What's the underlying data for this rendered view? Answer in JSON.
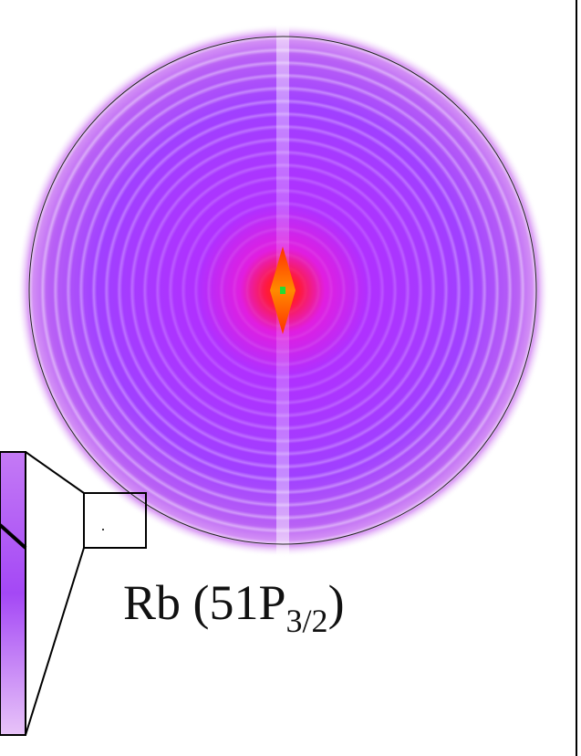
{
  "label": {
    "main": "Rb (51P",
    "sub": "3/2",
    "close": ")"
  }
}
